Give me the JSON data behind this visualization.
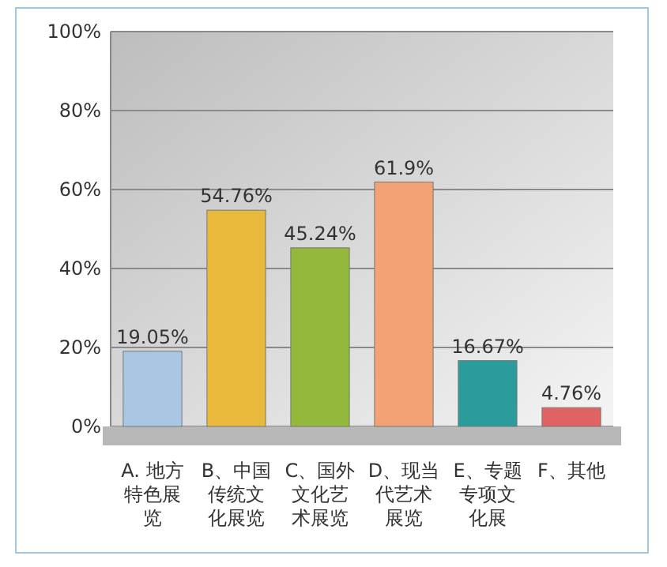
{
  "chart_data": {
    "type": "bar",
    "categories": [
      "A. 地方特色展览",
      "B、中国传统文化展览",
      "C、国外文化艺术展览",
      "D、现当代艺术展览",
      "E、专题专项文化展",
      "F、其他"
    ],
    "values": [
      19.05,
      54.76,
      45.24,
      61.9,
      16.67,
      4.76
    ],
    "value_labels": [
      "19.05%",
      "54.76%",
      "45.24%",
      "61.9%",
      "16.67%",
      "4.76%"
    ],
    "colors": [
      "#a9c6e3",
      "#e9b93c",
      "#93b83c",
      "#f2a274",
      "#2b9c9c",
      "#e06262"
    ],
    "ylim": [
      0,
      100
    ],
    "yticks": [
      {
        "value": 0,
        "label": "0%"
      },
      {
        "value": 20,
        "label": "20%"
      },
      {
        "value": 40,
        "label": "40%"
      },
      {
        "value": 60,
        "label": "60%"
      },
      {
        "value": 80,
        "label": "80%"
      },
      {
        "value": 100,
        "label": "100%"
      }
    ],
    "grid": "y"
  }
}
